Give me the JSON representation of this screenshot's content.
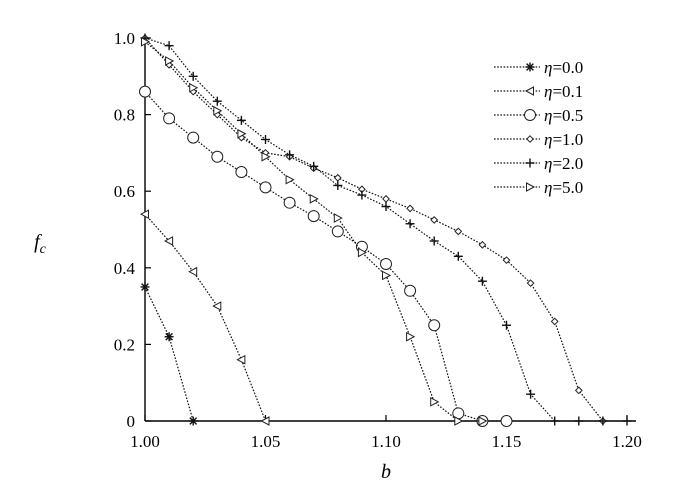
{
  "chart_data": {
    "type": "line",
    "xlabel": "b",
    "ylabel": "f",
    "ylabel_sub": "c",
    "xlim": [
      1.0,
      1.2
    ],
    "ylim": [
      0,
      1.0
    ],
    "x_ticks": [
      "1.00",
      "1.05",
      "1.10",
      "1.15",
      "1.20"
    ],
    "y_ticks": [
      "0",
      "0.2",
      "0.4",
      "0.6",
      "0.8",
      "1.0"
    ],
    "legend_position": "top-right",
    "series": [
      {
        "name": "η=0.0",
        "greek": "η",
        "eq": "=0.0",
        "marker": "asterisk",
        "x": [
          1.0,
          1.01,
          1.02
        ],
        "y": [
          0.35,
          0.22,
          0.0
        ]
      },
      {
        "name": "η=0.1",
        "greek": "η",
        "eq": "=0.1",
        "marker": "triangle-left",
        "x": [
          1.0,
          1.01,
          1.02,
          1.03,
          1.04,
          1.05
        ],
        "y": [
          0.54,
          0.47,
          0.39,
          0.3,
          0.16,
          0.0
        ]
      },
      {
        "name": "η=0.5",
        "greek": "η",
        "eq": "=0.5",
        "marker": "circle",
        "x": [
          1.0,
          1.01,
          1.02,
          1.03,
          1.04,
          1.05,
          1.06,
          1.07,
          1.08,
          1.09,
          1.1,
          1.11,
          1.12,
          1.13,
          1.14,
          1.15
        ],
        "y": [
          0.86,
          0.79,
          0.74,
          0.69,
          0.65,
          0.61,
          0.57,
          0.535,
          0.495,
          0.455,
          0.41,
          0.34,
          0.25,
          0.02,
          0.0,
          0.0
        ]
      },
      {
        "name": "η=1.0",
        "greek": "η",
        "eq": "=1.0",
        "marker": "diamond",
        "x": [
          1.0,
          1.01,
          1.02,
          1.03,
          1.04,
          1.05,
          1.06,
          1.07,
          1.08,
          1.09,
          1.1,
          1.11,
          1.12,
          1.13,
          1.14,
          1.15,
          1.16,
          1.17,
          1.18,
          1.19
        ],
        "y": [
          1.0,
          0.93,
          0.86,
          0.8,
          0.74,
          0.7,
          0.69,
          0.66,
          0.635,
          0.605,
          0.58,
          0.555,
          0.525,
          0.495,
          0.46,
          0.42,
          0.36,
          0.26,
          0.08,
          0.0
        ]
      },
      {
        "name": "η=2.0",
        "greek": "η",
        "eq": "=2.0",
        "marker": "plus",
        "x": [
          1.0,
          1.01,
          1.02,
          1.03,
          1.04,
          1.05,
          1.06,
          1.07,
          1.08,
          1.09,
          1.1,
          1.11,
          1.12,
          1.13,
          1.14,
          1.15,
          1.16,
          1.17,
          1.18,
          1.19,
          1.2
        ],
        "y": [
          1.0,
          0.98,
          0.9,
          0.835,
          0.785,
          0.735,
          0.695,
          0.665,
          0.615,
          0.59,
          0.56,
          0.515,
          0.47,
          0.43,
          0.365,
          0.25,
          0.07,
          0.0,
          0.0,
          0.0,
          0.0
        ]
      },
      {
        "name": "η=5.0",
        "greek": "η",
        "eq": "=5.0",
        "marker": "triangle-right",
        "x": [
          1.0,
          1.01,
          1.02,
          1.03,
          1.04,
          1.05,
          1.06,
          1.07,
          1.08,
          1.09,
          1.1,
          1.11,
          1.12,
          1.13,
          1.14
        ],
        "y": [
          0.99,
          0.94,
          0.87,
          0.81,
          0.75,
          0.69,
          0.63,
          0.58,
          0.53,
          0.44,
          0.38,
          0.22,
          0.05,
          0.0,
          0.0
        ]
      }
    ]
  }
}
